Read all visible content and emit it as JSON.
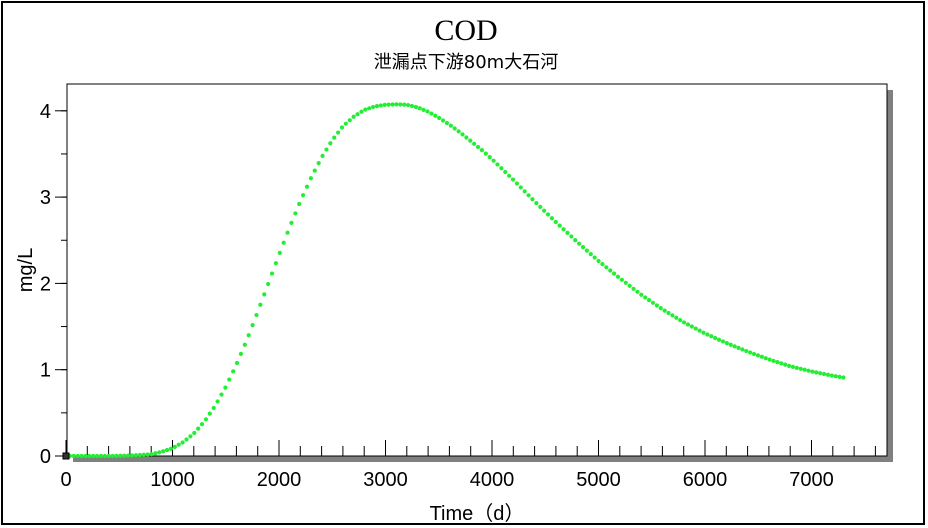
{
  "chart_data": {
    "type": "scatter",
    "title": "COD",
    "subtitle": "泄漏点下游80m大石河",
    "xlabel": "Time（d）",
    "ylabel": "mg/L",
    "xlim": [
      0,
      7700
    ],
    "ylim": [
      0,
      4.2
    ],
    "x_ticks": [
      0,
      1000,
      2000,
      3000,
      4000,
      5000,
      6000,
      7000
    ],
    "y_ticks": [
      0,
      1,
      2,
      3,
      4
    ],
    "x_tick_labels": [
      "0",
      "1000",
      "2000",
      "3000",
      "4000",
      "5000",
      "6000",
      "7000"
    ],
    "y_tick_labels": [
      "0",
      "1",
      "2",
      "3",
      "4"
    ],
    "x_minor_step": 200,
    "y_minor_step": 0.5,
    "grid": false,
    "colors": {
      "series": "#22ee33",
      "axis": "#000000",
      "shadow": "#808080"
    },
    "series": [
      {
        "x": [
          0,
          200,
          400,
          600,
          800,
          900,
          1000,
          1100,
          1200,
          1300,
          1400,
          1500,
          1600,
          1700,
          1800,
          1900,
          2000,
          2100,
          2200,
          2300,
          2400,
          2500,
          2600,
          2700,
          2800,
          2900,
          3000,
          3100,
          3200,
          3300,
          3400,
          3500,
          3600,
          3700,
          3800,
          3900,
          4000,
          4200,
          4400,
          4600,
          4800,
          5000,
          5200,
          5400,
          5600,
          5800,
          6000,
          6200,
          6400,
          6600,
          6800,
          7000,
          7200,
          7300
        ],
        "y": [
          0.0,
          0.0,
          0.0,
          0.005,
          0.02,
          0.05,
          0.09,
          0.16,
          0.26,
          0.4,
          0.58,
          0.8,
          1.06,
          1.35,
          1.67,
          2.0,
          2.33,
          2.65,
          2.95,
          3.22,
          3.46,
          3.66,
          3.82,
          3.93,
          4.01,
          4.05,
          4.07,
          4.075,
          4.07,
          4.04,
          3.99,
          3.92,
          3.84,
          3.75,
          3.65,
          3.55,
          3.44,
          3.2,
          2.95,
          2.71,
          2.48,
          2.26,
          2.06,
          1.87,
          1.7,
          1.55,
          1.42,
          1.31,
          1.21,
          1.12,
          1.04,
          0.98,
          0.93,
          0.91
        ]
      }
    ]
  }
}
